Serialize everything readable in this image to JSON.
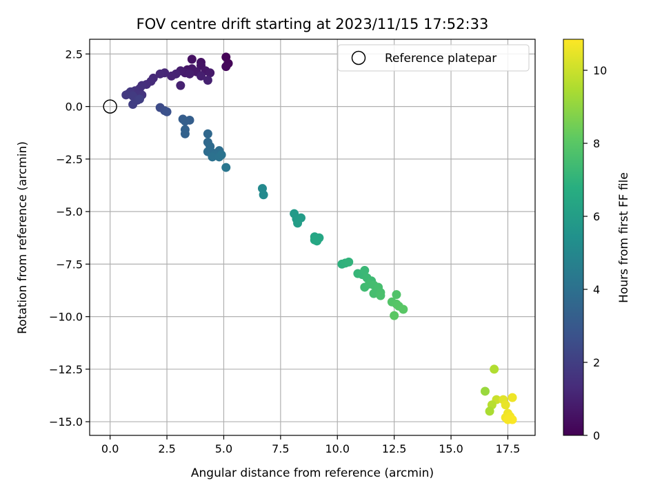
{
  "chart_data": {
    "type": "scatter",
    "title": "FOV centre drift starting at 2023/11/15 17:52:33",
    "xlabel": "Angular distance from reference (arcmin)",
    "ylabel": "Rotation from reference (arcmin)",
    "xlim": [
      -0.9,
      18.7
    ],
    "ylim": [
      -15.65,
      3.2
    ],
    "xticks": [
      0.0,
      2.5,
      5.0,
      7.5,
      10.0,
      12.5,
      15.0,
      17.5
    ],
    "xtick_labels": [
      "0.0",
      "2.5",
      "5.0",
      "7.5",
      "10.0",
      "12.5",
      "15.0",
      "17.5"
    ],
    "yticks": [
      2.5,
      0.0,
      -2.5,
      -5.0,
      -7.5,
      -10.0,
      -12.5,
      -15.0
    ],
    "ytick_labels": [
      "2.5",
      "0.0",
      "−2.5",
      "−5.0",
      "−7.5",
      "−10.0",
      "−12.5",
      "−15.0"
    ],
    "grid": true,
    "legend": {
      "position": "upper-right",
      "entries": [
        "Reference platepar"
      ]
    },
    "reference_point": {
      "x": 0.0,
      "y": 0.0,
      "marker": "open-circle"
    },
    "colorbar": {
      "label": "Hours from first FF file",
      "colormap": "viridis",
      "range": [
        0,
        10.85
      ],
      "ticks": [
        0,
        2,
        4,
        6,
        8,
        10
      ],
      "tick_labels": [
        "0",
        "2",
        "4",
        "6",
        "8",
        "10"
      ]
    },
    "points": [
      {
        "x": 5.1,
        "y": 2.35,
        "h": 0.1
      },
      {
        "x": 5.2,
        "y": 2.05,
        "h": 0.15
      },
      {
        "x": 5.1,
        "y": 1.9,
        "h": 0.2
      },
      {
        "x": 3.6,
        "y": 2.25,
        "h": 0.5
      },
      {
        "x": 4.0,
        "y": 2.1,
        "h": 0.55
      },
      {
        "x": 4.0,
        "y": 1.95,
        "h": 0.6
      },
      {
        "x": 3.4,
        "y": 1.75,
        "h": 0.65
      },
      {
        "x": 3.6,
        "y": 1.8,
        "h": 0.7
      },
      {
        "x": 3.8,
        "y": 1.65,
        "h": 0.75
      },
      {
        "x": 4.2,
        "y": 1.7,
        "h": 0.7
      },
      {
        "x": 4.4,
        "y": 1.6,
        "h": 0.8
      },
      {
        "x": 3.3,
        "y": 1.6,
        "h": 0.85
      },
      {
        "x": 3.5,
        "y": 1.55,
        "h": 0.9
      },
      {
        "x": 3.1,
        "y": 1.7,
        "h": 0.9
      },
      {
        "x": 4.0,
        "y": 1.45,
        "h": 0.95
      },
      {
        "x": 4.3,
        "y": 1.25,
        "h": 1.0
      },
      {
        "x": 3.1,
        "y": 1.0,
        "h": 1.05
      },
      {
        "x": 2.9,
        "y": 1.55,
        "h": 1.1
      },
      {
        "x": 2.7,
        "y": 1.45,
        "h": 1.15
      },
      {
        "x": 2.4,
        "y": 1.6,
        "h": 1.2
      },
      {
        "x": 2.2,
        "y": 1.55,
        "h": 1.25
      },
      {
        "x": 1.9,
        "y": 1.35,
        "h": 1.3
      },
      {
        "x": 1.8,
        "y": 1.2,
        "h": 1.35
      },
      {
        "x": 1.6,
        "y": 1.05,
        "h": 1.4
      },
      {
        "x": 1.4,
        "y": 1.0,
        "h": 1.5
      },
      {
        "x": 1.3,
        "y": 0.85,
        "h": 1.55
      },
      {
        "x": 1.1,
        "y": 0.75,
        "h": 1.6
      },
      {
        "x": 1.2,
        "y": 0.55,
        "h": 1.65
      },
      {
        "x": 1.4,
        "y": 0.55,
        "h": 1.7
      },
      {
        "x": 0.9,
        "y": 0.7,
        "h": 1.75
      },
      {
        "x": 0.8,
        "y": 0.6,
        "h": 1.8
      },
      {
        "x": 0.7,
        "y": 0.55,
        "h": 1.85
      },
      {
        "x": 1.0,
        "y": 0.5,
        "h": 1.9
      },
      {
        "x": 1.2,
        "y": 0.3,
        "h": 1.95
      },
      {
        "x": 1.0,
        "y": 0.1,
        "h": 2.0
      },
      {
        "x": 1.3,
        "y": 0.35,
        "h": 2.05
      },
      {
        "x": 2.2,
        "y": -0.05,
        "h": 2.5
      },
      {
        "x": 2.4,
        "y": -0.2,
        "h": 2.6
      },
      {
        "x": 2.5,
        "y": -0.25,
        "h": 2.7
      },
      {
        "x": 3.2,
        "y": -0.6,
        "h": 3.2
      },
      {
        "x": 3.5,
        "y": -0.65,
        "h": 3.25
      },
      {
        "x": 3.3,
        "y": -0.7,
        "h": 3.3
      },
      {
        "x": 3.3,
        "y": -1.1,
        "h": 3.4
      },
      {
        "x": 3.3,
        "y": -1.3,
        "h": 3.45
      },
      {
        "x": 4.3,
        "y": -1.3,
        "h": 3.7
      },
      {
        "x": 4.3,
        "y": -1.7,
        "h": 3.75
      },
      {
        "x": 4.4,
        "y": -1.9,
        "h": 3.8
      },
      {
        "x": 4.3,
        "y": -2.15,
        "h": 3.85
      },
      {
        "x": 4.5,
        "y": -2.2,
        "h": 3.9
      },
      {
        "x": 4.8,
        "y": -2.1,
        "h": 3.95
      },
      {
        "x": 4.6,
        "y": -2.3,
        "h": 4.0
      },
      {
        "x": 4.5,
        "y": -2.4,
        "h": 4.05
      },
      {
        "x": 4.8,
        "y": -2.4,
        "h": 4.1
      },
      {
        "x": 4.9,
        "y": -2.3,
        "h": 4.15
      },
      {
        "x": 5.1,
        "y": -2.9,
        "h": 4.3
      },
      {
        "x": 6.7,
        "y": -3.9,
        "h": 5.1
      },
      {
        "x": 6.75,
        "y": -4.2,
        "h": 5.15
      },
      {
        "x": 8.1,
        "y": -5.1,
        "h": 5.9
      },
      {
        "x": 8.2,
        "y": -5.35,
        "h": 5.95
      },
      {
        "x": 8.4,
        "y": -5.3,
        "h": 6.0
      },
      {
        "x": 8.25,
        "y": -5.55,
        "h": 6.05
      },
      {
        "x": 9.0,
        "y": -6.2,
        "h": 6.4
      },
      {
        "x": 9.2,
        "y": -6.25,
        "h": 6.45
      },
      {
        "x": 9.1,
        "y": -6.4,
        "h": 6.5
      },
      {
        "x": 9.0,
        "y": -6.35,
        "h": 6.5
      },
      {
        "x": 10.2,
        "y": -7.5,
        "h": 6.95
      },
      {
        "x": 10.35,
        "y": -7.45,
        "h": 7.0
      },
      {
        "x": 10.5,
        "y": -7.4,
        "h": 7.05
      },
      {
        "x": 10.9,
        "y": -7.95,
        "h": 7.2
      },
      {
        "x": 11.1,
        "y": -8.0,
        "h": 7.25
      },
      {
        "x": 11.2,
        "y": -7.8,
        "h": 7.3
      },
      {
        "x": 11.3,
        "y": -8.15,
        "h": 7.35
      },
      {
        "x": 11.5,
        "y": -8.3,
        "h": 7.4
      },
      {
        "x": 11.2,
        "y": -8.6,
        "h": 7.45
      },
      {
        "x": 11.4,
        "y": -8.45,
        "h": 7.5
      },
      {
        "x": 11.6,
        "y": -8.5,
        "h": 7.55
      },
      {
        "x": 11.8,
        "y": -8.6,
        "h": 7.6
      },
      {
        "x": 11.6,
        "y": -8.9,
        "h": 7.6
      },
      {
        "x": 11.9,
        "y": -8.85,
        "h": 7.65
      },
      {
        "x": 11.9,
        "y": -9.0,
        "h": 7.7
      },
      {
        "x": 12.6,
        "y": -8.95,
        "h": 7.85
      },
      {
        "x": 12.4,
        "y": -9.3,
        "h": 7.9
      },
      {
        "x": 12.6,
        "y": -9.4,
        "h": 7.95
      },
      {
        "x": 12.7,
        "y": -9.5,
        "h": 8.0
      },
      {
        "x": 12.9,
        "y": -9.65,
        "h": 8.05
      },
      {
        "x": 12.5,
        "y": -9.95,
        "h": 8.1
      },
      {
        "x": 16.9,
        "y": -12.5,
        "h": 9.6
      },
      {
        "x": 16.5,
        "y": -13.55,
        "h": 9.2
      },
      {
        "x": 17.0,
        "y": -13.95,
        "h": 10.0
      },
      {
        "x": 16.8,
        "y": -14.2,
        "h": 9.7
      },
      {
        "x": 16.7,
        "y": -14.5,
        "h": 9.5
      },
      {
        "x": 17.3,
        "y": -13.95,
        "h": 10.4
      },
      {
        "x": 17.7,
        "y": -13.85,
        "h": 10.6
      },
      {
        "x": 17.4,
        "y": -14.2,
        "h": 10.5
      },
      {
        "x": 17.5,
        "y": -14.6,
        "h": 10.6
      },
      {
        "x": 17.4,
        "y": -14.8,
        "h": 10.65
      },
      {
        "x": 17.6,
        "y": -14.75,
        "h": 10.7
      },
      {
        "x": 17.7,
        "y": -14.9,
        "h": 10.8
      },
      {
        "x": 17.5,
        "y": -14.9,
        "h": 10.75
      }
    ]
  }
}
